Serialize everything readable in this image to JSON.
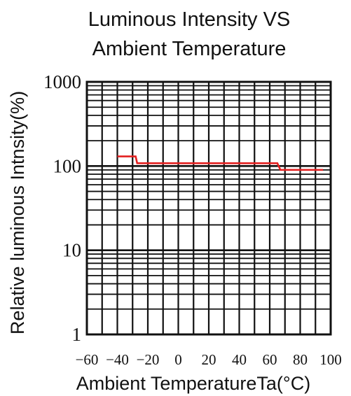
{
  "chart_data": {
    "type": "line",
    "title_lines": [
      "Luminous Intensity VS",
      "Ambient Temperature"
    ],
    "xlabel": "Ambient TemperatureTa(°C)",
    "ylabel": "Relative luminous Intnsity(%)",
    "y_scale": "log",
    "ylim": [
      1,
      1000
    ],
    "xlim": [
      -60,
      100
    ],
    "grid": true,
    "x_ticks": [
      -60,
      -40,
      -20,
      0,
      20,
      40,
      60,
      80,
      100
    ],
    "x_tick_labels": [
      "−60",
      "−40",
      "−20",
      "0",
      "20",
      "40",
      "60",
      "80",
      "100"
    ],
    "y_tick_labels": [
      "1",
      "10",
      "100",
      "1000"
    ],
    "y_ticks": [
      1,
      10,
      100,
      1000
    ],
    "series": [
      {
        "color": "#e32020",
        "x": [
          -40,
          -28,
          -27,
          65,
          67,
          95
        ],
        "y": [
          130,
          130,
          108,
          108,
          90,
          90
        ]
      }
    ]
  }
}
